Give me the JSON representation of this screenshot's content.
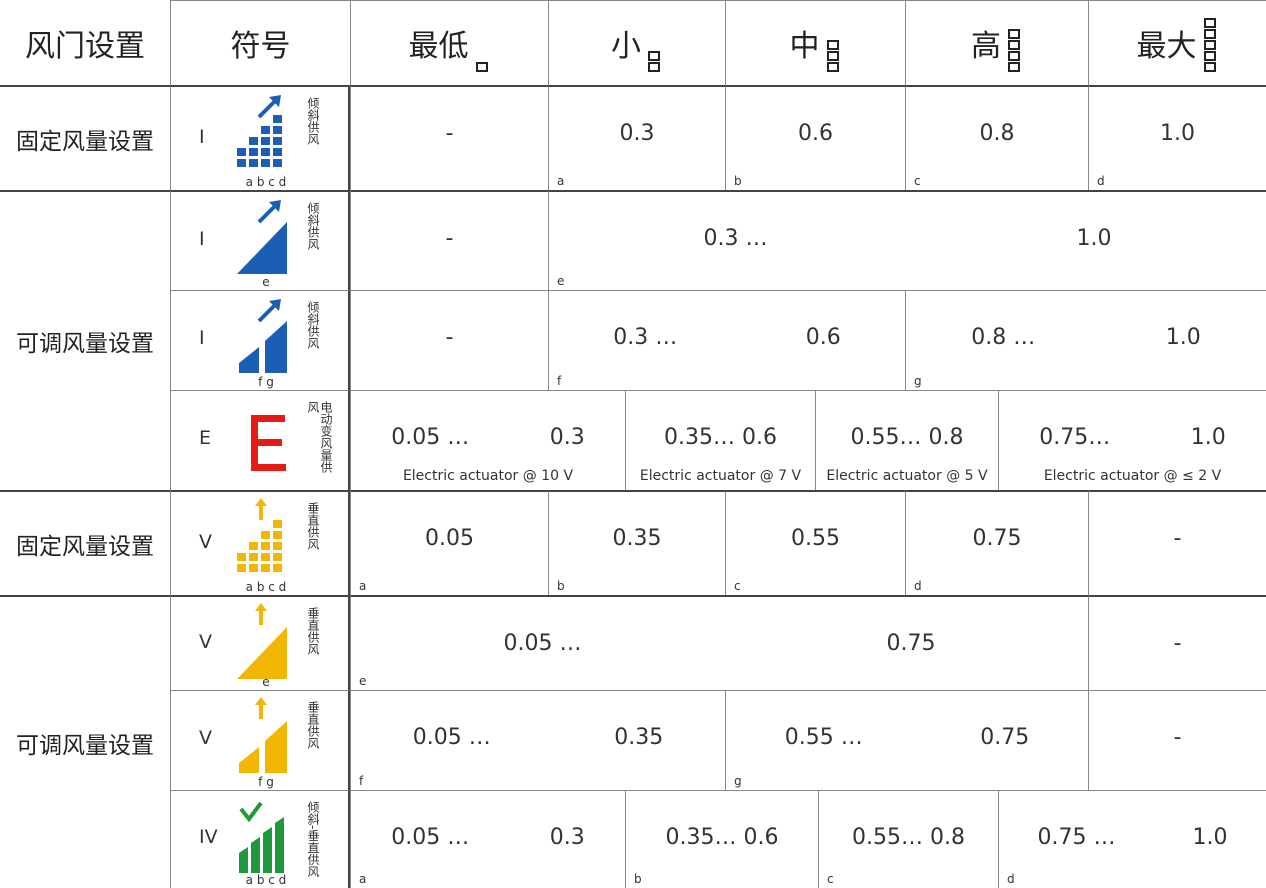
{
  "header": {
    "mode": "风门设置",
    "symbol": "符号",
    "levels": [
      "最低",
      "小",
      "中",
      "高",
      "最大"
    ]
  },
  "groups": [
    {
      "label": "固定风量设置",
      "rows": [
        {
          "symbol": "I",
          "icon_label": "a b c d",
          "caption": "倾斜供风",
          "icon_color": "#1a5fb4",
          "segments": [
            {
              "texts": [
                "-"
              ]
            },
            {
              "letter": "a",
              "texts": [
                "0.3"
              ]
            },
            {
              "letter": "b",
              "texts": [
                "0.6"
              ]
            },
            {
              "letter": "c",
              "texts": [
                "0.8"
              ]
            },
            {
              "letter": "d",
              "texts": [
                "1.0"
              ]
            }
          ]
        }
      ]
    },
    {
      "label": "可调风量设置",
      "rows": [
        {
          "symbol": "I",
          "icon_label": "e",
          "caption": "倾斜供风",
          "icon_color": "#1a5fb4",
          "segments": [
            {
              "texts": [
                "-"
              ]
            },
            {
              "letter": "e",
              "texts": [
                "0.3 …",
                "1.0"
              ]
            }
          ]
        },
        {
          "symbol": "I",
          "icon_label": "f g",
          "caption": "倾斜供风",
          "icon_color": "#1a5fb4",
          "segments": [
            {
              "texts": [
                "-"
              ]
            },
            {
              "letter": "f",
              "texts": [
                "0.3 …",
                "0.6"
              ]
            },
            {
              "letter": "g",
              "texts": [
                "0.8 …",
                "1.0"
              ]
            }
          ]
        },
        {
          "symbol": "E",
          "caption": "电动变风量供风",
          "icon_color": "#e41b17",
          "segments": [
            {
              "texts": [
                "0.05 …",
                "0.3"
              ],
              "note": "Electric actuator @ 10 V"
            },
            {
              "texts": [
                "0.35… 0.6"
              ],
              "note": "Electric actuator @ 7 V"
            },
            {
              "texts": [
                "0.55… 0.8"
              ],
              "note": "Electric actuator @ 5 V"
            },
            {
              "texts": [
                "0.75…",
                "1.0"
              ],
              "note": "Electric actuator @ ≤ 2 V"
            }
          ]
        }
      ]
    },
    {
      "label": "固定风量设置",
      "rows": [
        {
          "symbol": "V",
          "icon_label": "a b c d",
          "caption": "垂直供风",
          "icon_color": "#f2b705",
          "segments": [
            {
              "letter": "a",
              "texts": [
                "0.05"
              ]
            },
            {
              "letter": "b",
              "texts": [
                "0.35"
              ]
            },
            {
              "letter": "c",
              "texts": [
                "0.55"
              ]
            },
            {
              "letter": "d",
              "texts": [
                "0.75"
              ]
            },
            {
              "texts": [
                "-"
              ]
            }
          ]
        }
      ]
    },
    {
      "label": "可调风量设置",
      "rows": [
        {
          "symbol": "V",
          "icon_label": "e",
          "caption": "垂直供风",
          "icon_color": "#f2b705",
          "segments": [
            {
              "letter": "e",
              "texts": [
                "0.05 …",
                "0.75"
              ]
            },
            {
              "texts": [
                "-"
              ]
            }
          ]
        },
        {
          "symbol": "V",
          "icon_label": "f g",
          "caption": "垂直供风",
          "icon_color": "#f2b705",
          "segments": [
            {
              "letter": "f",
              "texts": [
                "0.05 …",
                "0.35"
              ]
            },
            {
              "letter": "g",
              "texts": [
                "0.55 …",
                "0.75"
              ]
            },
            {
              "texts": [
                "-"
              ]
            }
          ]
        },
        {
          "symbol": "IV",
          "icon_label": "a b c d",
          "caption": "倾斜-垂直供风",
          "icon_color": "#1e9a3c",
          "segments": [
            {
              "letter": "a",
              "texts": [
                "0.05 …",
                "0.3"
              ]
            },
            {
              "letter": "b",
              "texts": [
                "0.35… 0.6"
              ]
            },
            {
              "letter": "c",
              "texts": [
                "0.55… 0.8"
              ]
            },
            {
              "letter": "d",
              "texts": [
                "0.75 …",
                "1.0"
              ]
            }
          ]
        }
      ]
    }
  ]
}
